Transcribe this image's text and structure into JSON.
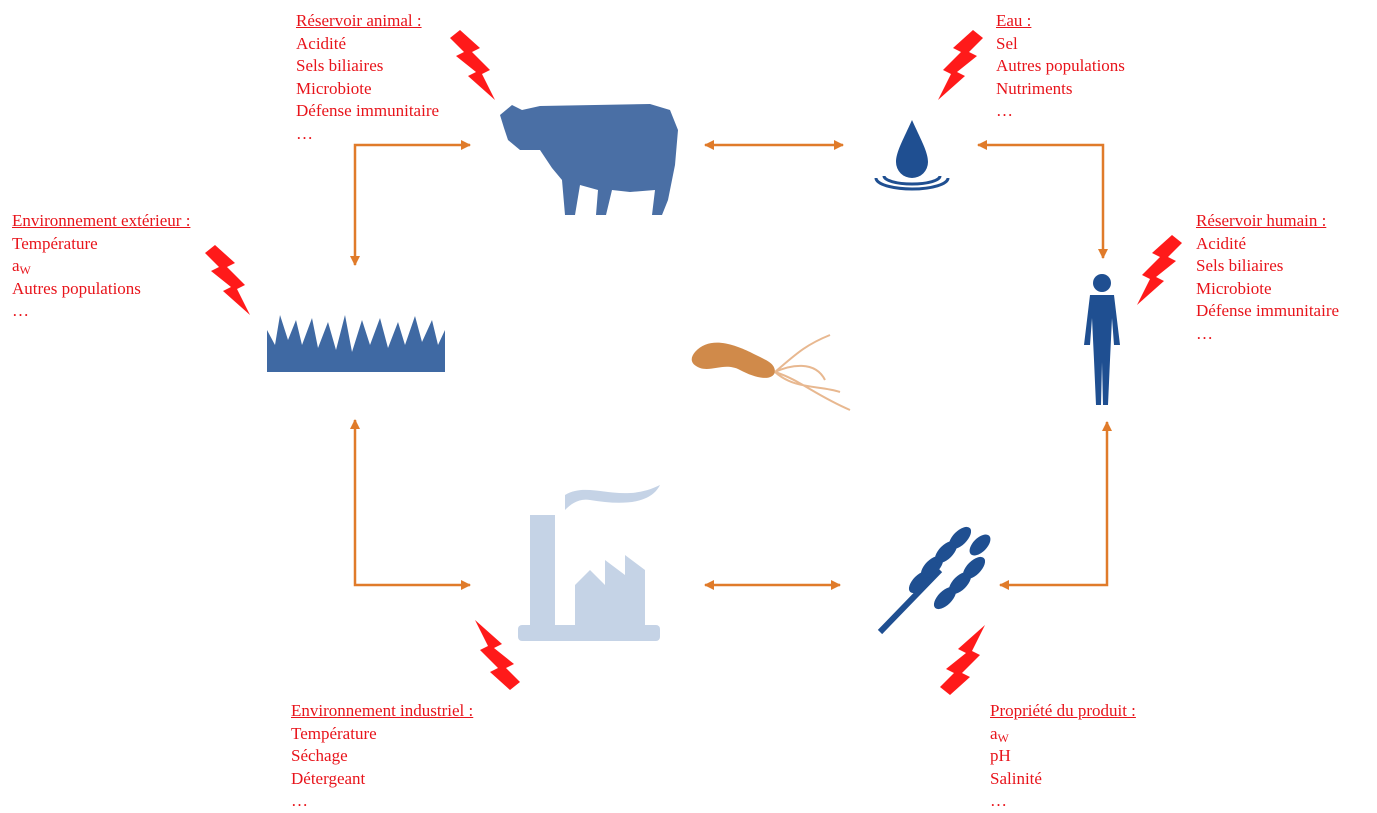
{
  "nodes": [
    {
      "title": "Réservoir animal :",
      "items": [
        "Acidité",
        "Sels biliaires",
        "Microbiote",
        "Défense immunitaire",
        "…"
      ]
    },
    {
      "title": "Eau :",
      "items": [
        "Sel",
        "Autres populations",
        "Nutriments",
        "…"
      ]
    },
    {
      "title": "Environnement extérieur :",
      "items": [
        "Température",
        {
          "text": "a",
          "subscript": "W"
        },
        "Autres populations",
        "…"
      ]
    },
    {
      "title": "Réservoir humain :",
      "items": [
        "Acidité",
        "Sels biliaires",
        "Microbiote",
        "Défense immunitaire",
        "…"
      ]
    },
    {
      "title": "Environnement industriel :",
      "items": [
        "Température",
        "Séchage",
        "Détergeant",
        "…"
      ]
    },
    {
      "title": "Propriété du produit :",
      "items": [
        {
          "text": "a",
          "subscript": "W"
        },
        "pH",
        "Salinité",
        "…"
      ]
    }
  ]
}
